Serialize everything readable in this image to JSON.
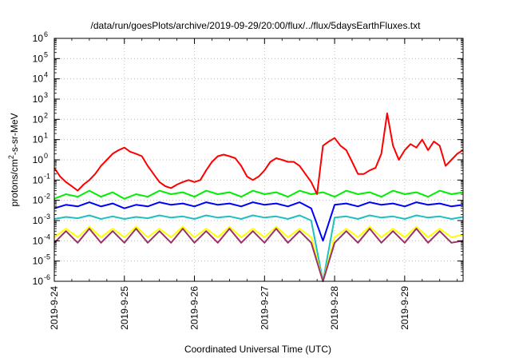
{
  "chart_data": {
    "type": "line",
    "title": "/data/run/goesPlots/archive/2019-09-29/20:00/flux/../flux/5daysEarthFluxes.txt",
    "xlabel": "Coordinated Universal Time (UTC)",
    "ylabel": {
      "base": "protons/cm",
      "sup": "2",
      "rest": "-s-sr-MeV"
    },
    "y_scale": "log",
    "ylim": [
      1e-06,
      1000000.0
    ],
    "y_ticks": [
      {
        "value": 1e-06,
        "base": "10",
        "exp": "-6"
      },
      {
        "value": 1e-05,
        "base": "10",
        "exp": "-5"
      },
      {
        "value": 0.0001,
        "base": "10",
        "exp": "-4"
      },
      {
        "value": 0.001,
        "base": "10",
        "exp": "-3"
      },
      {
        "value": 0.01,
        "base": "10",
        "exp": "-2"
      },
      {
        "value": 0.1,
        "base": "10",
        "exp": "-1"
      },
      {
        "value": 1,
        "base": "10",
        "exp": "0"
      },
      {
        "value": 10,
        "base": "10",
        "exp": "1"
      },
      {
        "value": 100,
        "base": "10",
        "exp": "2"
      },
      {
        "value": 1000,
        "base": "10",
        "exp": "3"
      },
      {
        "value": 10000,
        "base": "10",
        "exp": "4"
      },
      {
        "value": 100000,
        "base": "10",
        "exp": "5"
      },
      {
        "value": 1000000,
        "base": "10",
        "exp": "6"
      }
    ],
    "xlim": [
      "2019-09-24T00:00",
      "2019-09-29T20:00"
    ],
    "x_ticks": [
      "2019-9-24",
      "2019-9-25",
      "2019-9-26",
      "2019-9-27",
      "2019-9-28",
      "2019-9-29"
    ],
    "grid": true,
    "legend": "none",
    "series": [
      {
        "color": "#ff0000",
        "x": [
          "2019-09-24T00:00",
          "2019-09-24T02:00",
          "2019-09-24T04:00",
          "2019-09-24T06:00",
          "2019-09-24T08:00",
          "2019-09-24T10:00",
          "2019-09-24T12:00",
          "2019-09-24T14:00",
          "2019-09-24T16:00",
          "2019-09-24T18:00",
          "2019-09-24T20:00",
          "2019-09-24T22:00",
          "2019-09-25T00:00",
          "2019-09-25T02:00",
          "2019-09-25T04:00",
          "2019-09-25T06:00",
          "2019-09-25T08:00",
          "2019-09-25T10:00",
          "2019-09-25T12:00",
          "2019-09-25T14:00",
          "2019-09-25T16:00",
          "2019-09-25T18:00",
          "2019-09-25T20:00",
          "2019-09-25T22:00",
          "2019-09-26T00:00",
          "2019-09-26T02:00",
          "2019-09-26T04:00",
          "2019-09-26T06:00",
          "2019-09-26T08:00",
          "2019-09-26T10:00",
          "2019-09-26T12:00",
          "2019-09-26T14:00",
          "2019-09-26T16:00",
          "2019-09-26T18:00",
          "2019-09-26T20:00",
          "2019-09-26T22:00",
          "2019-09-27T00:00",
          "2019-09-27T02:00",
          "2019-09-27T04:00",
          "2019-09-27T06:00",
          "2019-09-27T08:00",
          "2019-09-27T10:00",
          "2019-09-27T12:00",
          "2019-09-27T14:00",
          "2019-09-27T16:00",
          "2019-09-27T18:00",
          "2019-09-27T20:00",
          "2019-09-27T22:00",
          "2019-09-28T00:00",
          "2019-09-28T02:00",
          "2019-09-28T04:00",
          "2019-09-28T06:00",
          "2019-09-28T08:00",
          "2019-09-28T10:00",
          "2019-09-28T12:00",
          "2019-09-28T14:00",
          "2019-09-28T16:00",
          "2019-09-28T18:00",
          "2019-09-28T20:00",
          "2019-09-28T22:00",
          "2019-09-29T00:00",
          "2019-09-29T02:00",
          "2019-09-29T04:00",
          "2019-09-29T06:00",
          "2019-09-29T08:00",
          "2019-09-29T10:00",
          "2019-09-29T12:00",
          "2019-09-29T14:00",
          "2019-09-29T16:00",
          "2019-09-29T18:00",
          "2019-09-29T20:00"
        ],
        "values": [
          0.4,
          0.15,
          0.08,
          0.05,
          0.03,
          0.06,
          0.1,
          0.2,
          0.5,
          1,
          2,
          3,
          4,
          2.5,
          2,
          1.5,
          0.5,
          0.2,
          0.08,
          0.05,
          0.04,
          0.06,
          0.08,
          0.1,
          0.08,
          0.1,
          0.3,
          0.8,
          1.5,
          1.8,
          1.5,
          1.2,
          0.5,
          0.15,
          0.1,
          0.15,
          0.3,
          0.8,
          1.2,
          1,
          0.8,
          0.8,
          0.5,
          0.2,
          0.08,
          0.02,
          5,
          8,
          12,
          5,
          3,
          0.8,
          0.2,
          0.2,
          0.3,
          0.4,
          2,
          200,
          5,
          1,
          3,
          6,
          4,
          10,
          3,
          8,
          5,
          0.5,
          1,
          2,
          3
        ]
      },
      {
        "color": "#00ee00",
        "x": [
          "2019-09-24T00:00",
          "2019-09-24T04:00",
          "2019-09-24T08:00",
          "2019-09-24T12:00",
          "2019-09-24T16:00",
          "2019-09-24T20:00",
          "2019-09-25T00:00",
          "2019-09-25T04:00",
          "2019-09-25T08:00",
          "2019-09-25T12:00",
          "2019-09-25T16:00",
          "2019-09-25T20:00",
          "2019-09-26T00:00",
          "2019-09-26T04:00",
          "2019-09-26T08:00",
          "2019-09-26T12:00",
          "2019-09-26T16:00",
          "2019-09-26T20:00",
          "2019-09-27T00:00",
          "2019-09-27T04:00",
          "2019-09-27T08:00",
          "2019-09-27T12:00",
          "2019-09-27T16:00",
          "2019-09-27T20:00",
          "2019-09-28T00:00",
          "2019-09-28T04:00",
          "2019-09-28T08:00",
          "2019-09-28T12:00",
          "2019-09-28T16:00",
          "2019-09-28T20:00",
          "2019-09-29T00:00",
          "2019-09-29T04:00",
          "2019-09-29T08:00",
          "2019-09-29T12:00",
          "2019-09-29T16:00",
          "2019-09-29T20:00"
        ],
        "values": [
          0.012,
          0.02,
          0.015,
          0.03,
          0.015,
          0.025,
          0.012,
          0.02,
          0.015,
          0.03,
          0.02,
          0.025,
          0.015,
          0.03,
          0.02,
          0.025,
          0.015,
          0.03,
          0.02,
          0.025,
          0.015,
          0.03,
          0.02,
          0.025,
          0.015,
          0.03,
          0.02,
          0.025,
          0.015,
          0.03,
          0.02,
          0.025,
          0.015,
          0.03,
          0.02,
          0.025
        ]
      },
      {
        "color": "#0000ff",
        "x": [
          "2019-09-24T00:00",
          "2019-09-24T04:00",
          "2019-09-24T08:00",
          "2019-09-24T12:00",
          "2019-09-24T16:00",
          "2019-09-24T20:00",
          "2019-09-25T00:00",
          "2019-09-25T04:00",
          "2019-09-25T08:00",
          "2019-09-25T12:00",
          "2019-09-25T16:00",
          "2019-09-25T20:00",
          "2019-09-26T00:00",
          "2019-09-26T04:00",
          "2019-09-26T08:00",
          "2019-09-26T12:00",
          "2019-09-26T16:00",
          "2019-09-26T20:00",
          "2019-09-27T00:00",
          "2019-09-27T04:00",
          "2019-09-27T08:00",
          "2019-09-27T12:00",
          "2019-09-27T16:00",
          "2019-09-27T20:00",
          "2019-09-28T00:00",
          "2019-09-28T04:00",
          "2019-09-28T08:00",
          "2019-09-28T12:00",
          "2019-09-28T16:00",
          "2019-09-28T20:00",
          "2019-09-29T00:00",
          "2019-09-29T04:00",
          "2019-09-29T08:00",
          "2019-09-29T12:00",
          "2019-09-29T16:00",
          "2019-09-29T20:00"
        ],
        "values": [
          0.004,
          0.006,
          0.005,
          0.008,
          0.005,
          0.007,
          0.004,
          0.006,
          0.005,
          0.008,
          0.006,
          0.007,
          0.005,
          0.008,
          0.006,
          0.007,
          0.005,
          0.008,
          0.006,
          0.007,
          0.005,
          0.008,
          0.004,
          0.0001,
          0.006,
          0.007,
          0.005,
          0.008,
          0.006,
          0.007,
          0.005,
          0.008,
          0.006,
          0.007,
          0.005,
          0.006
        ]
      },
      {
        "color": "#20c0c0",
        "x": [
          "2019-09-24T00:00",
          "2019-09-24T04:00",
          "2019-09-24T08:00",
          "2019-09-24T12:00",
          "2019-09-24T16:00",
          "2019-09-24T20:00",
          "2019-09-25T00:00",
          "2019-09-25T04:00",
          "2019-09-25T08:00",
          "2019-09-25T12:00",
          "2019-09-25T16:00",
          "2019-09-25T20:00",
          "2019-09-26T00:00",
          "2019-09-26T04:00",
          "2019-09-26T08:00",
          "2019-09-26T12:00",
          "2019-09-26T16:00",
          "2019-09-26T20:00",
          "2019-09-27T00:00",
          "2019-09-27T04:00",
          "2019-09-27T08:00",
          "2019-09-27T12:00",
          "2019-09-27T16:00",
          "2019-09-27T20:00",
          "2019-09-28T00:00",
          "2019-09-28T04:00",
          "2019-09-28T08:00",
          "2019-09-28T12:00",
          "2019-09-28T16:00",
          "2019-09-28T20:00",
          "2019-09-29T00:00",
          "2019-09-29T04:00",
          "2019-09-29T08:00",
          "2019-09-29T12:00",
          "2019-09-29T16:00",
          "2019-09-29T20:00"
        ],
        "values": [
          0.0012,
          0.0015,
          0.0013,
          0.0018,
          0.0012,
          0.0016,
          0.0012,
          0.0015,
          0.0013,
          0.0018,
          0.0014,
          0.0016,
          0.0012,
          0.0018,
          0.0014,
          0.0016,
          0.0012,
          0.0018,
          0.0014,
          0.0016,
          0.0012,
          0.0018,
          0.001,
          1e-06,
          0.0014,
          0.0016,
          0.0012,
          0.0018,
          0.0014,
          0.0016,
          0.0012,
          0.0018,
          0.0014,
          0.0016,
          0.0012,
          0.0015
        ]
      },
      {
        "color": "#ffff00",
        "x": [
          "2019-09-24T00:00",
          "2019-09-24T04:00",
          "2019-09-24T08:00",
          "2019-09-24T12:00",
          "2019-09-24T16:00",
          "2019-09-24T20:00",
          "2019-09-25T00:00",
          "2019-09-25T04:00",
          "2019-09-25T08:00",
          "2019-09-25T12:00",
          "2019-09-25T16:00",
          "2019-09-25T20:00",
          "2019-09-26T00:00",
          "2019-09-26T04:00",
          "2019-09-26T08:00",
          "2019-09-26T12:00",
          "2019-09-26T16:00",
          "2019-09-26T20:00",
          "2019-09-27T00:00",
          "2019-09-27T04:00",
          "2019-09-27T08:00",
          "2019-09-27T12:00",
          "2019-09-27T16:00",
          "2019-09-27T20:00",
          "2019-09-28T00:00",
          "2019-09-28T04:00",
          "2019-09-28T08:00",
          "2019-09-28T12:00",
          "2019-09-28T16:00",
          "2019-09-28T20:00",
          "2019-09-29T00:00",
          "2019-09-29T04:00",
          "2019-09-29T08:00",
          "2019-09-29T12:00",
          "2019-09-29T16:00",
          "2019-09-29T20:00"
        ],
        "values": [
          0.00015,
          0.0004,
          0.00015,
          0.0005,
          0.00015,
          0.0004,
          0.00015,
          0.0005,
          0.00015,
          0.0004,
          0.00015,
          0.0005,
          0.00015,
          0.0004,
          0.00015,
          0.0005,
          0.00015,
          0.0004,
          0.00015,
          0.0005,
          0.00015,
          0.0004,
          0.00015,
          1e-06,
          0.00015,
          0.0004,
          0.00015,
          0.0005,
          0.00015,
          0.0004,
          0.00015,
          0.0005,
          0.00015,
          0.0004,
          0.00015,
          0.0002
        ]
      },
      {
        "color": "#993366",
        "x": [
          "2019-09-24T00:00",
          "2019-09-24T04:00",
          "2019-09-24T08:00",
          "2019-09-24T12:00",
          "2019-09-24T16:00",
          "2019-09-24T20:00",
          "2019-09-25T00:00",
          "2019-09-25T04:00",
          "2019-09-25T08:00",
          "2019-09-25T12:00",
          "2019-09-25T16:00",
          "2019-09-25T20:00",
          "2019-09-26T00:00",
          "2019-09-26T04:00",
          "2019-09-26T08:00",
          "2019-09-26T12:00",
          "2019-09-26T16:00",
          "2019-09-26T20:00",
          "2019-09-27T00:00",
          "2019-09-27T04:00",
          "2019-09-27T08:00",
          "2019-09-27T12:00",
          "2019-09-27T16:00",
          "2019-09-27T20:00",
          "2019-09-28T00:00",
          "2019-09-28T04:00",
          "2019-09-28T08:00",
          "2019-09-28T12:00",
          "2019-09-28T16:00",
          "2019-09-28T20:00",
          "2019-09-29T00:00",
          "2019-09-29T04:00",
          "2019-09-29T08:00",
          "2019-09-29T12:00",
          "2019-09-29T16:00",
          "2019-09-29T20:00"
        ],
        "values": [
          8e-05,
          0.0003,
          8e-05,
          0.0004,
          8e-05,
          0.0003,
          8e-05,
          0.0004,
          8e-05,
          0.0003,
          8e-05,
          0.0004,
          8e-05,
          0.0003,
          8e-05,
          0.0004,
          8e-05,
          0.0003,
          8e-05,
          0.0004,
          8e-05,
          0.0003,
          8e-05,
          1e-06,
          8e-05,
          0.0003,
          8e-05,
          0.0004,
          8e-05,
          0.0003,
          8e-05,
          0.0004,
          8e-05,
          0.0003,
          8e-05,
          0.0001
        ]
      }
    ]
  }
}
